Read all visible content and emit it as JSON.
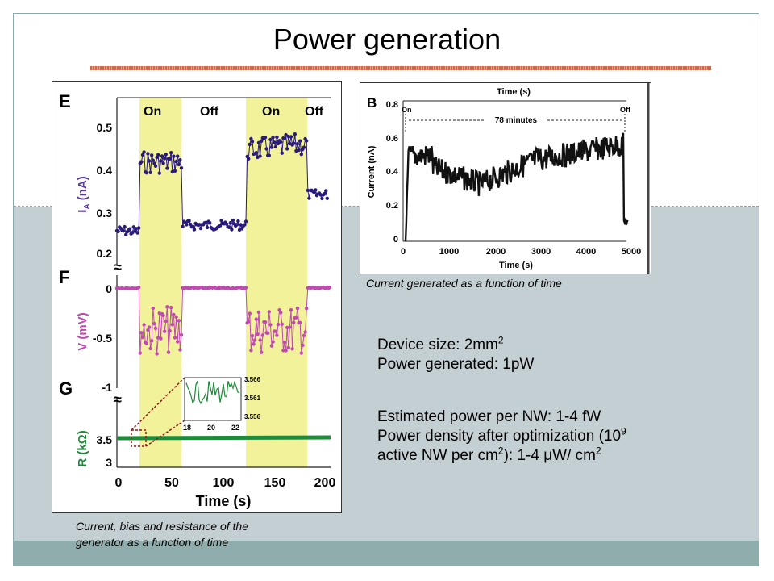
{
  "slide": {
    "title": "Power generation",
    "colors": {
      "frame": "#8aa9ad",
      "lower_bg": "#c4cfd4",
      "bottom_band": "#8fadad",
      "title_rule": "#d2694b"
    }
  },
  "figure_left": {
    "panels": [
      "E",
      "F",
      "G"
    ],
    "state_labels": [
      "On",
      "Off",
      "On",
      "Off"
    ],
    "e_ylabel": "I",
    "e_ylabel_sub": "A",
    "e_ylabel_unit": " (nA)",
    "e_ticks": [
      "0.5",
      "0.4",
      "0.3",
      "0.2"
    ],
    "f_ylabel": "V (mV)",
    "f_ticks": [
      "0",
      "-0.5",
      "-1"
    ],
    "g_ylabel": "R (kΩ)",
    "g_ticks": [
      "3.5",
      "3"
    ],
    "x_ticks": [
      "0",
      "50",
      "100",
      "150",
      "200"
    ],
    "xlabel": "Time (s)",
    "break_mark": "≈",
    "inset_y_ticks": [
      "3.566",
      "3.561",
      "3.556"
    ],
    "inset_x_ticks": [
      "18",
      "20",
      "22"
    ],
    "colors": {
      "current": "#2a1a7a",
      "voltage": "#c04ab0",
      "resistance": "#1f8a3a",
      "on_band": "#f2f29a"
    }
  },
  "figure_right": {
    "panel": "B",
    "top_label": "Time (s)",
    "on_label": "On",
    "off_label": "Off",
    "duration_label": "78 minutes",
    "ylabel": "Current (nA)",
    "y_ticks": [
      "0.8",
      "0.6",
      "0.4",
      "0.2",
      "0"
    ],
    "x_ticks": [
      "0",
      "1000",
      "2000",
      "3000",
      "4000",
      "5000"
    ],
    "xlabel": "Time (s)"
  },
  "captions": {
    "right": "Current generated as a function of time",
    "left_line1": "Current, bias and resistance of the",
    "left_line2": "generator as a function of time"
  },
  "info": {
    "device_size": "Device size: 2mm",
    "device_size_sup": "2",
    "power_generated": "Power generated: 1pW",
    "power_per_nw": "Estimated power per NW: 1-4 fW",
    "density_a": "Power density after optimization (10",
    "density_a_sup": "9",
    "density_b": "active NW per cm",
    "density_b_sup": "2",
    "density_c": "): 1-4 μW/ cm",
    "density_c_sup": "2"
  }
}
